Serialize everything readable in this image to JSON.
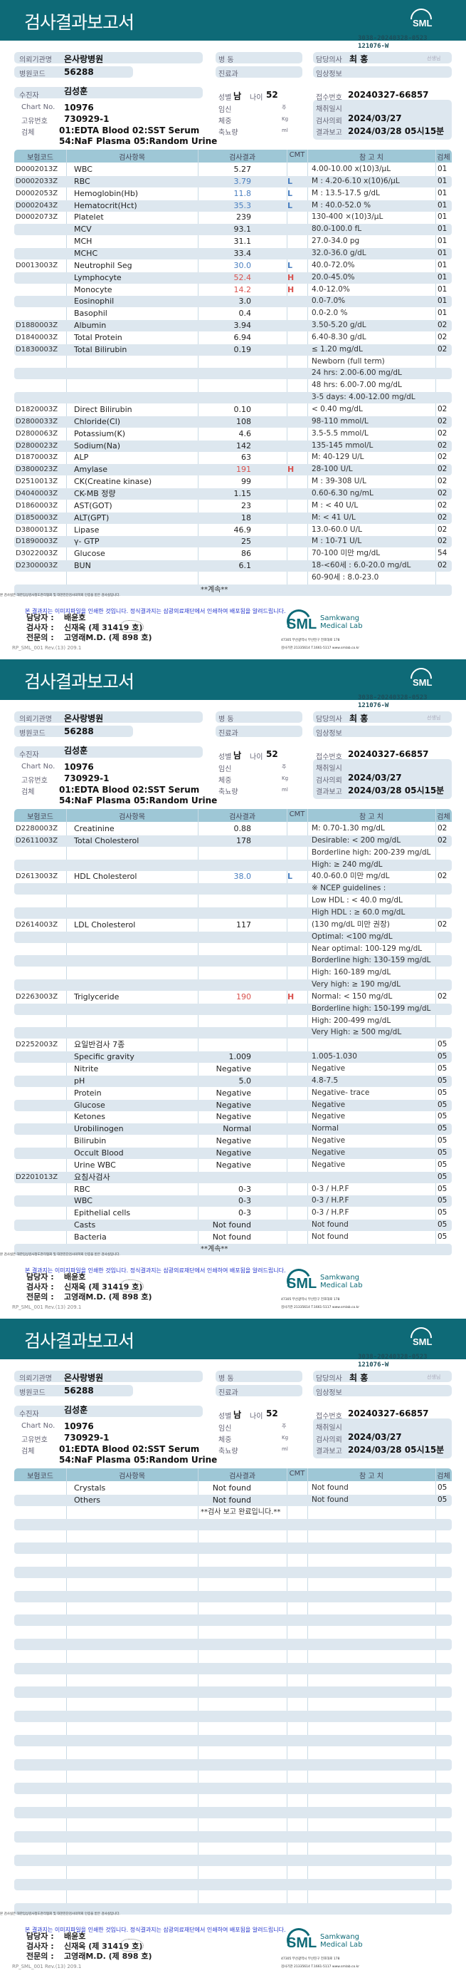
{
  "report": {
    "title": "검사결과보고서",
    "logo_text": "SML",
    "doc_no": "3038-20240328-0523",
    "doc_no2": "121076-W",
    "hospital_label": "의뢰기관명",
    "hospital": "온사랑병원",
    "ward_label": "병  동",
    "doctor_label": "담당의사",
    "doctor": "최 홍",
    "doctor_suffix": "선생님",
    "hospital_code_label": "병원코드",
    "hospital_code": "56288",
    "dept_label": "진료과",
    "clinical_label": "임상정보",
    "patient_label": "수진자",
    "patient": "김성훈",
    "chart_label": "Chart No.",
    "chart_no": "10976",
    "id_label": "고유번호",
    "id_no": "730929-1",
    "specimen_label": "검체",
    "specimen_line1": "01:EDTA Blood 02:SST Serum",
    "specimen_line2": "54:NaF Plasma 05:Random Urine",
    "sex_label": "성별",
    "sex": "남",
    "age_label": "나이",
    "age": "52",
    "pregnancy_label": "임신",
    "pregnancy_unit": "주",
    "weight_label": "체중",
    "weight_unit": "Kg",
    "urine_label": "축뇨량",
    "urine_unit": "ml",
    "receipt_label": "접수번호",
    "receipt_no": "20240327-66857",
    "collect_label": "채취일시",
    "request_label": "검사의뢰",
    "request_date": "2024/03/27",
    "report_label": "결과보고",
    "report_date": "2024/03/28 05시15분"
  },
  "columns": [
    "보험코드",
    "검사항목",
    "검사결과",
    "CMT",
    "참 고 치",
    "검체"
  ],
  "flag_colors": {
    "L": "#4a7fc0",
    "H": "#d9534f"
  },
  "footer": {
    "cert_note": "본 검사실은 대한임상검사정도관리협회 및 대한진단검사의학회 인증을 받은 검사실입니다.",
    "image_note": "본 결과지는 이미지파일을 인쇄한 것입니다. 정식결과지는 삼광의료재단에서 인쇄하여 배포됨을 알려드립니다.",
    "manager_label": "담당자 :",
    "manager": "배윤호",
    "tester_label": "검사자 :",
    "tester": "신재옥 (제 31419 호)",
    "specialist_label": "전문의 :",
    "specialist": "고영래M.D. (제 898 호)",
    "lab_name_1": "Samkwang",
    "lab_name_2": "Medical Lab",
    "address": "47305 부산광역시 부산진구 전포대로 178",
    "contact": "검사기관 21335614 T.1661-5117 www.smlab.co.kr",
    "form_code": "RP_SML_001 Rev.(13) 209.1"
  },
  "pages": [
    {
      "rows": [
        [
          "D0002013Z",
          "WBC",
          "5.27",
          "",
          "4.00-10.00 x(10)3/μL",
          "01"
        ],
        [
          "D0002033Z",
          "RBC",
          "3.79",
          "L",
          "M : 4.20-6.10 x(10)6/μL",
          "01"
        ],
        [
          "D0002053Z",
          "Hemoglobin(Hb)",
          "11.8",
          "L",
          "M : 13.5-17.5 g/dL",
          "01"
        ],
        [
          "D0002043Z",
          "Hematocrit(Hct)",
          "35.3",
          "L",
          "M : 40.0-52.0 %",
          "01"
        ],
        [
          "D0002073Z",
          "Platelet",
          "239",
          "",
          "130-400 ×(10)3/μL",
          "01"
        ],
        [
          "",
          "MCV",
          "93.1",
          "",
          "80.0-100.0 fL",
          "01"
        ],
        [
          "",
          "MCH",
          "31.1",
          "",
          "27.0-34.0 pg",
          "01"
        ],
        [
          "",
          "MCHC",
          "33.4",
          "",
          "32.0-36.0 g/dL",
          "01"
        ],
        [
          "D0013003Z",
          "Neutrophil Seg",
          "30.0",
          "L",
          "40.0-72.0%",
          "01"
        ],
        [
          "",
          "Lymphocyte",
          "52.4",
          "H",
          "20.0-45.0%",
          "01"
        ],
        [
          "",
          "Monocyte",
          "14.2",
          "H",
          "4.0-12.0%",
          "01"
        ],
        [
          "",
          "Eosinophil",
          "3.0",
          "",
          "0.0-7.0%",
          "01"
        ],
        [
          "",
          "Basophil",
          "0.4",
          "",
          "0.0-2.0 %",
          "01"
        ],
        [
          "D1880003Z",
          "Albumin",
          "3.94",
          "",
          "3.50-5.20 g/dL",
          "02"
        ],
        [
          "D1840003Z",
          "Total Protein",
          "6.94",
          "",
          "6.40-8.30 g/dL",
          "02"
        ],
        [
          "D1830003Z",
          "Total Bilirubin",
          "0.19",
          "",
          "≤ 1.20 mg/dL",
          "02"
        ],
        [
          "",
          "",
          "",
          "",
          "Newborn (full term)",
          ""
        ],
        [
          "",
          "",
          "",
          "",
          "24 hrs: 2.00-6.00 mg/dL",
          ""
        ],
        [
          "",
          "",
          "",
          "",
          "48 hrs: 6.00-7.00 mg/dL",
          ""
        ],
        [
          "",
          "",
          "",
          "",
          "3-5 days: 4.00-12.00 mg/dL",
          ""
        ],
        [
          "D1820003Z",
          "Direct Bilirubin",
          "0.10",
          "",
          "< 0.40 mg/dL",
          "02"
        ],
        [
          "D2800033Z",
          "Chloride(Cl)",
          "108",
          "",
          "98-110 mmol/L",
          "02"
        ],
        [
          "D2800063Z",
          "Potassium(K)",
          "4.6",
          "",
          "3.5-5.5 mmol/L",
          "02"
        ],
        [
          "D2800023Z",
          "Sodium(Na)",
          "142",
          "",
          "135-145 mmol/L",
          "02"
        ],
        [
          "D1870003Z",
          "ALP",
          "63",
          "",
          "M: 40-129 U/L",
          "02"
        ],
        [
          "D3800023Z",
          "Amylase",
          "191",
          "H",
          "28-100 U/L",
          "02"
        ],
        [
          "D2510013Z",
          "CK(Creatine kinase)",
          "99",
          "",
          "M : 39-308 U/L",
          "02"
        ],
        [
          "D4040003Z",
          "CK-MB 정량",
          "1.15",
          "",
          "0.60-6.30 ng/mL",
          "02"
        ],
        [
          "D1860003Z",
          "AST(GOT)",
          "23",
          "",
          "M : < 40 U/L",
          "02"
        ],
        [
          "D1850003Z",
          "ALT(GPT)",
          "18",
          "",
          "M: < 41 U/L",
          "02"
        ],
        [
          "D3800013Z",
          "Lipase",
          "46.9",
          "",
          "13.0-60.0 U/L",
          "02"
        ],
        [
          "D1890003Z",
          "γ- GTP",
          "25",
          "",
          "M : 10-71 U/L",
          "02"
        ],
        [
          "D3022003Z",
          "Glucose",
          "86",
          "",
          "70-100 미만 mg/dL",
          "54"
        ],
        [
          "D2300003Z",
          "BUN",
          "6.1",
          "",
          "18-<60세 : 6.0-20.0 mg/dL",
          "02"
        ],
        [
          "",
          "",
          "",
          "",
          "60-90세 : 8.0-23.0",
          ""
        ]
      ],
      "end_note": "**계속**"
    },
    {
      "rows": [
        [
          "D2280003Z",
          "Creatinine",
          "0.88",
          "",
          "M: 0.70-1.30 mg/dL",
          "02"
        ],
        [
          "D2611003Z",
          "Total Cholesterol",
          "178",
          "",
          "Desirable: < 200 mg/dL",
          "02"
        ],
        [
          "",
          "",
          "",
          "",
          "Borderline high: 200-239 mg/dL",
          ""
        ],
        [
          "",
          "",
          "",
          "",
          "High: ≥ 240 mg/dL",
          ""
        ],
        [
          "D2613003Z",
          "HDL Cholesterol",
          "38.0",
          "L",
          "40.0-60.0 미만 mg/dL",
          "02"
        ],
        [
          "",
          "",
          "",
          "",
          "※ NCEP guidelines :",
          ""
        ],
        [
          "",
          "",
          "",
          "",
          "Low HDL : < 40.0 mg/dL",
          ""
        ],
        [
          "",
          "",
          "",
          "",
          "High HDL : ≥ 60.0 mg/dL",
          ""
        ],
        [
          "D2614003Z",
          "LDL Cholesterol",
          "117",
          "",
          "(130 mg/dL 미만 권장)",
          "02"
        ],
        [
          "",
          "",
          "",
          "",
          "Optimal: <100 mg/dL",
          ""
        ],
        [
          "",
          "",
          "",
          "",
          "Near optimal: 100-129 mg/dL",
          ""
        ],
        [
          "",
          "",
          "",
          "",
          "Borderline high: 130-159 mg/dL",
          ""
        ],
        [
          "",
          "",
          "",
          "",
          "High: 160-189 mg/dL",
          ""
        ],
        [
          "",
          "",
          "",
          "",
          "Very high: ≥ 190 mg/dL",
          ""
        ],
        [
          "D2263003Z",
          "Triglyceride",
          "190",
          "H",
          "Normal: < 150 mg/dL",
          "02"
        ],
        [
          "",
          "",
          "",
          "",
          "Borderline high: 150-199 mg/dL",
          ""
        ],
        [
          "",
          "",
          "",
          "",
          "High: 200-499 mg/dL",
          ""
        ],
        [
          "",
          "",
          "",
          "",
          "Very High: ≥ 500 mg/dL",
          ""
        ],
        [
          "D2252003Z",
          "요일반검사 7종",
          "",
          "",
          "",
          "05"
        ],
        [
          "",
          "Specific gravity",
          "1.009",
          "",
          "1.005-1.030",
          "05"
        ],
        [
          "",
          "Nitrite",
          "Negative",
          "",
          "Negative",
          "05"
        ],
        [
          "",
          "pH",
          "5.0",
          "",
          "4.8-7.5",
          "05"
        ],
        [
          "",
          "Protein",
          "Negative",
          "",
          "Negative- trace",
          "05"
        ],
        [
          "",
          "Glucose",
          "Negative",
          "",
          "Negative",
          "05"
        ],
        [
          "",
          "Ketones",
          "Negative",
          "",
          "Negative",
          "05"
        ],
        [
          "",
          "Urobilinogen",
          "Normal",
          "",
          "Normal",
          "05"
        ],
        [
          "",
          "Bilirubin",
          "Negative",
          "",
          "Negative",
          "05"
        ],
        [
          "",
          "Occult Blood",
          "Negative",
          "",
          "Negative",
          "05"
        ],
        [
          "",
          "Urine WBC",
          "Negative",
          "",
          "Negative",
          "05"
        ],
        [
          "D2201013Z",
          "요침사검사",
          "",
          "",
          "",
          "05"
        ],
        [
          "",
          "RBC",
          "0-3",
          "",
          "0-3 / H.P.F",
          "05"
        ],
        [
          "",
          "WBC",
          "0-3",
          "",
          "0-3 / H.P.F",
          "05"
        ],
        [
          "",
          "Epithelial cells",
          "0-3",
          "",
          "0-3 / H.P.F",
          "05"
        ],
        [
          "",
          "Casts",
          "Not found",
          "",
          "Not found",
          "05"
        ],
        [
          "",
          "Bacteria",
          "Not found",
          "",
          "Not found",
          "05"
        ]
      ],
      "end_note": "**계속**"
    },
    {
      "rows": [
        [
          "",
          "Crystals",
          "Not found",
          "",
          "Not found",
          "05"
        ],
        [
          "",
          "Others",
          "Not found",
          "",
          "Not found",
          "05"
        ]
      ],
      "end_note": "**검사  보고  완료입니다.**"
    }
  ]
}
